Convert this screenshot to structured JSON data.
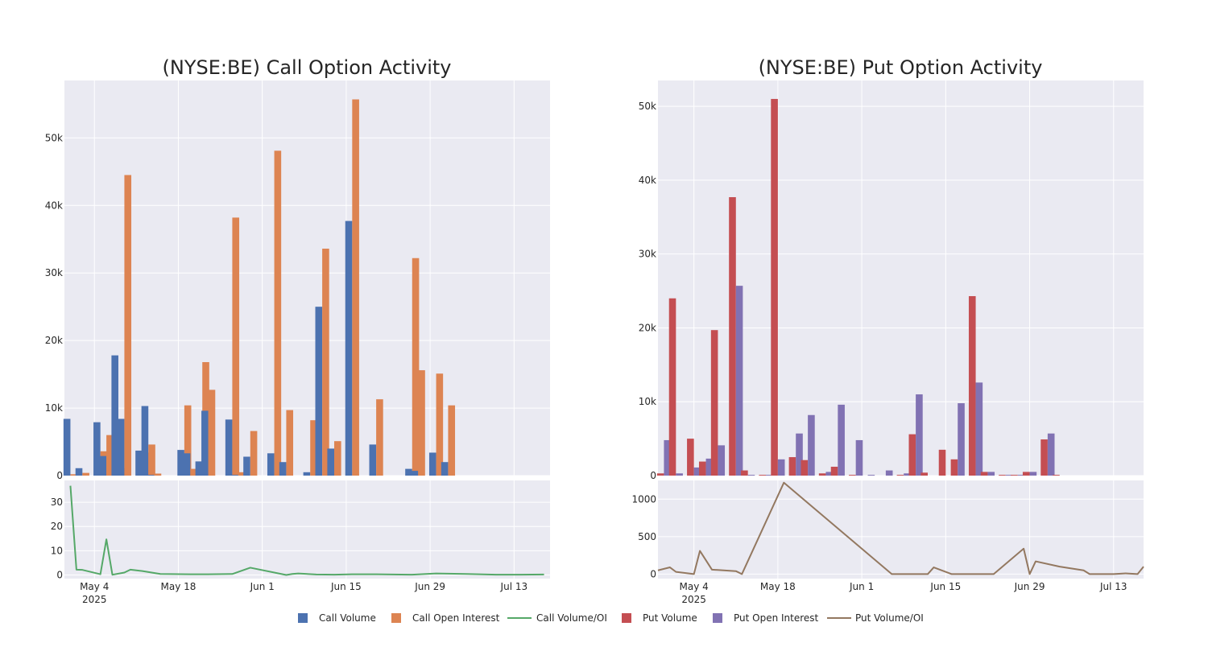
{
  "chart_data": [
    {
      "type": "bar",
      "title": "(NYSE:BE) Call Option Activity",
      "xlabel": "",
      "ylabel": "",
      "ylim": [
        0,
        58500
      ],
      "yticks": [
        0,
        10000,
        20000,
        30000,
        40000,
        50000
      ],
      "ytick_labels": [
        "0",
        "10k",
        "20k",
        "30k",
        "40k",
        "50k"
      ],
      "grid": true,
      "dates": [
        "2025-04-30",
        "2025-05-02",
        "2025-05-05",
        "2025-05-06",
        "2025-05-08",
        "2025-05-09",
        "2025-05-12",
        "2025-05-13",
        "2025-05-14",
        "2025-05-19",
        "2025-05-20",
        "2025-05-22",
        "2025-05-23",
        "2025-05-27",
        "2025-05-28",
        "2025-05-30",
        "2025-06-03",
        "2025-06-05",
        "2025-06-09",
        "2025-06-11",
        "2025-06-13",
        "2025-06-16",
        "2025-06-20",
        "2025-06-26",
        "2025-06-27",
        "2025-06-30",
        "2025-07-02",
        "2025-07-07",
        "2025-07-09",
        "2025-07-10",
        "2025-07-14",
        "2025-07-18"
      ],
      "series": [
        {
          "name": "Call Volume",
          "color": "#4c72b0",
          "values": [
            8400,
            1100,
            7900,
            2900,
            17800,
            8400,
            3700,
            10300,
            100,
            3800,
            3300,
            2100,
            9600,
            8300,
            100,
            2800,
            3300,
            2000,
            500,
            25000,
            4000,
            37700,
            4600,
            1000,
            700,
            3400,
            2000,
            0,
            0,
            0,
            0,
            0
          ]
        },
        {
          "name": "Call Open Interest",
          "color": "#dd8452",
          "values": [
            200,
            400,
            3600,
            6000,
            1100,
            44500,
            3400,
            4600,
            300,
            10400,
            1000,
            16800,
            12700,
            38200,
            500,
            6600,
            48100,
            9700,
            8200,
            33600,
            5100,
            55700,
            11300,
            32200,
            15600,
            15100,
            10400,
            0,
            0,
            0,
            0,
            0
          ]
        }
      ],
      "ratio": {
        "name": "Call Volume/OI",
        "color": "#55a868",
        "yticks": [
          0,
          10,
          20,
          30
        ],
        "ytick_labels": [
          "0",
          "10",
          "20",
          "30"
        ],
        "ylim": [
          -1.5,
          39
        ],
        "x": [
          "2025-04-30",
          "2025-05-01",
          "2025-05-02",
          "2025-05-05",
          "2025-05-06",
          "2025-05-07",
          "2025-05-09",
          "2025-05-10",
          "2025-05-12",
          "2025-05-15",
          "2025-05-20",
          "2025-05-23",
          "2025-05-27",
          "2025-05-30",
          "2025-06-05",
          "2025-06-06",
          "2025-06-07",
          "2025-06-10",
          "2025-06-13",
          "2025-06-16",
          "2025-06-20",
          "2025-06-26",
          "2025-06-30",
          "2025-07-03",
          "2025-07-05",
          "2025-07-10",
          "2025-07-11",
          "2025-07-14",
          "2025-07-18"
        ],
        "values": [
          36.8,
          2.2,
          2.1,
          0.3,
          14.7,
          0.1,
          1.0,
          2.2,
          1.6,
          0.4,
          0.3,
          0.3,
          0.4,
          3.0,
          0.0,
          0.4,
          0.6,
          0.2,
          0.1,
          0.3,
          0.3,
          0.1,
          0.6,
          0.5,
          0.4,
          0.1,
          0.1,
          0.1,
          0.2
        ]
      }
    },
    {
      "type": "bar",
      "title": "(NYSE:BE) Put Option Activity",
      "xlabel": "",
      "ylabel": "",
      "ylim": [
        0,
        53500
      ],
      "yticks": [
        0,
        10000,
        20000,
        30000,
        40000,
        50000
      ],
      "ytick_labels": [
        "0",
        "10k",
        "20k",
        "30k",
        "40k",
        "50k"
      ],
      "grid": true,
      "dates": [
        "2025-04-29",
        "2025-05-01",
        "2025-05-04",
        "2025-05-06",
        "2025-05-08",
        "2025-05-11",
        "2025-05-13",
        "2025-05-16",
        "2025-05-18",
        "2025-05-21",
        "2025-05-23",
        "2025-05-26",
        "2025-05-28",
        "2025-05-31",
        "2025-06-02",
        "2025-06-05",
        "2025-06-08",
        "2025-06-10",
        "2025-06-12",
        "2025-06-15",
        "2025-06-17",
        "2025-06-20",
        "2025-06-22",
        "2025-06-25",
        "2025-06-27",
        "2025-06-29",
        "2025-07-02",
        "2025-07-04",
        "2025-07-08",
        "2025-07-10",
        "2025-07-12",
        "2025-07-14"
      ],
      "series": [
        {
          "name": "Put Volume",
          "color": "#c44e52",
          "values": [
            300,
            24000,
            5000,
            1900,
            19700,
            37700,
            700,
            100,
            51000,
            2500,
            2100,
            300,
            1200,
            100,
            0,
            0,
            100,
            5600,
            400,
            3500,
            2200,
            24300,
            500,
            100,
            100,
            500,
            4900,
            100,
            0,
            0,
            0,
            0
          ]
        },
        {
          "name": "Put Open Interest",
          "color": "#8172b3",
          "values": [
            4800,
            300,
            1100,
            2300,
            4100,
            25700,
            100,
            100,
            2200,
            5700,
            8200,
            500,
            9600,
            4800,
            100,
            700,
            300,
            11000,
            0,
            0,
            9800,
            12600,
            500,
            100,
            100,
            500,
            5700,
            0,
            0,
            0,
            0,
            0
          ]
        }
      ],
      "ratio": {
        "name": "Put Volume/OI",
        "color": "#937860",
        "yticks": [
          0,
          500,
          1000
        ],
        "ytick_labels": [
          "0",
          "500",
          "1000"
        ],
        "ylim": [
          -60,
          1250
        ],
        "x": [
          "2025-04-28",
          "2025-04-30",
          "2025-05-01",
          "2025-05-04",
          "2025-05-05",
          "2025-05-07",
          "2025-05-11",
          "2025-05-12",
          "2025-05-19",
          "2025-06-06",
          "2025-06-09",
          "2025-06-12",
          "2025-06-13",
          "2025-06-16",
          "2025-06-19",
          "2025-06-23",
          "2025-06-28",
          "2025-06-29",
          "2025-06-30",
          "2025-07-04",
          "2025-07-08",
          "2025-07-09",
          "2025-07-13",
          "2025-07-15",
          "2025-07-17",
          "2025-07-18"
        ],
        "values": [
          50,
          90,
          30,
          0,
          310,
          60,
          40,
          0,
          1220,
          0,
          0,
          0,
          90,
          0,
          0,
          0,
          340,
          0,
          170,
          100,
          50,
          0,
          0,
          10,
          0,
          100
        ]
      }
    }
  ],
  "xaxis": {
    "tick_dates": [
      "2025-05-04",
      "2025-05-18",
      "2025-06-01",
      "2025-06-15",
      "2025-06-29",
      "2025-07-13"
    ],
    "tick_labels": [
      "May 4",
      "May 18",
      "Jun 1",
      "Jun 15",
      "Jun 29",
      "Jul 13"
    ],
    "year_label": "2025"
  },
  "legend": {
    "placement": "bottom-center",
    "items": [
      {
        "label": "Call Volume",
        "color": "#4c72b0",
        "kind": "bar"
      },
      {
        "label": "Call Open Interest",
        "color": "#dd8452",
        "kind": "bar"
      },
      {
        "label": "Call Volume/OI",
        "color": "#55a868",
        "kind": "line"
      },
      {
        "label": "Put Volume",
        "color": "#c44e52",
        "kind": "bar"
      },
      {
        "label": "Put Open Interest",
        "color": "#8172b3",
        "kind": "bar"
      },
      {
        "label": "Put Volume/OI",
        "color": "#937860",
        "kind": "line"
      }
    ]
  },
  "style": {
    "plot_background": "#eaeaf2",
    "grid_color": "#ffffff",
    "text_color": "#262626"
  }
}
